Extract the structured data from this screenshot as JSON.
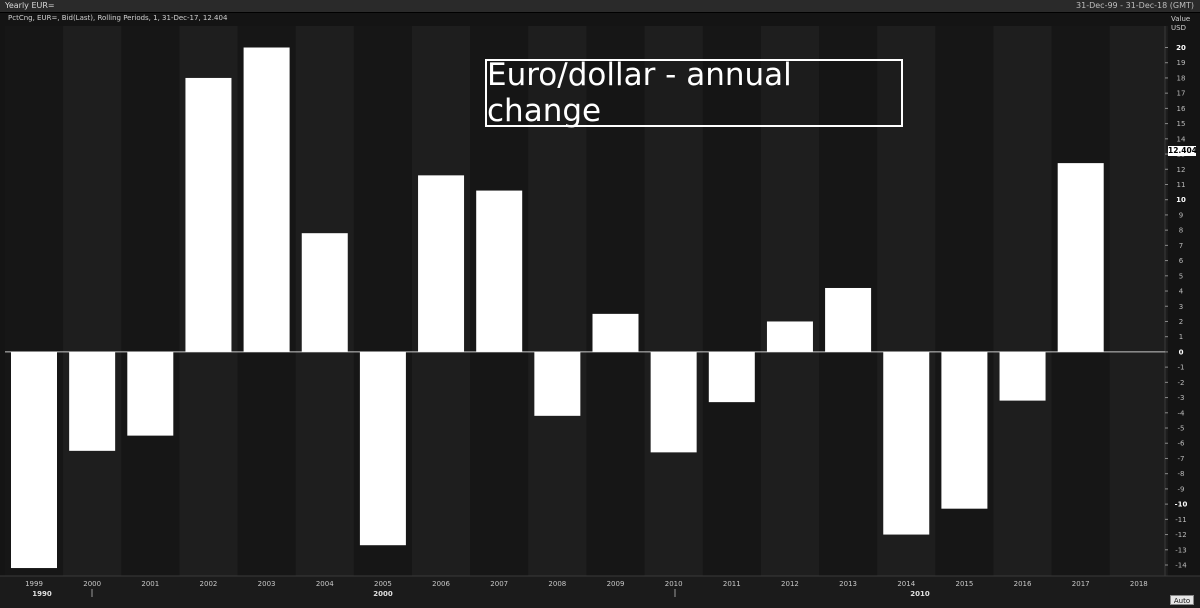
{
  "window": {
    "title": "Yearly EUR=",
    "date_range": "31-Dec-99 - 31-Dec-18 (GMT)"
  },
  "series_info": "PctCng, EUR=, Bid(Last), Rolling Periods, 1, 31-Dec-17, 12.404",
  "annotation": "Euro/dollar - annual change",
  "axis_header": {
    "line1": "Value",
    "line2": "USD"
  },
  "last_value_tag": "12.404",
  "auto_button": "Auto",
  "decade_labels": [
    "1990",
    "2000",
    "2010"
  ],
  "colors": {
    "background": "#141414",
    "bar": "#ffffff",
    "band_alt": "#1e1e1e",
    "zero_line": "#c8c8c8"
  },
  "chart_data": {
    "type": "bar",
    "categories": [
      "1999",
      "2000",
      "2001",
      "2002",
      "2003",
      "2004",
      "2005",
      "2006",
      "2007",
      "2008",
      "2009",
      "2010",
      "2011",
      "2012",
      "2013",
      "2014",
      "2015",
      "2016",
      "2017",
      "2018"
    ],
    "values": [
      -14.2,
      -6.5,
      -5.5,
      18.0,
      20.0,
      7.8,
      -12.7,
      11.6,
      10.6,
      -4.2,
      2.5,
      -6.6,
      -3.3,
      2.0,
      4.2,
      -12.0,
      -10.3,
      -3.2,
      12.404,
      null
    ],
    "yticks": [
      -14,
      -13,
      -12,
      -11,
      -10,
      -9,
      -8,
      -7,
      -6,
      -5,
      -4,
      -3,
      -2,
      -1,
      0,
      1,
      2,
      3,
      4,
      5,
      6,
      7,
      8,
      9,
      10,
      11,
      12,
      13,
      14,
      15,
      16,
      17,
      18,
      19,
      20
    ],
    "ylim": [
      -14.6,
      20.3
    ],
    "grid": false
  }
}
